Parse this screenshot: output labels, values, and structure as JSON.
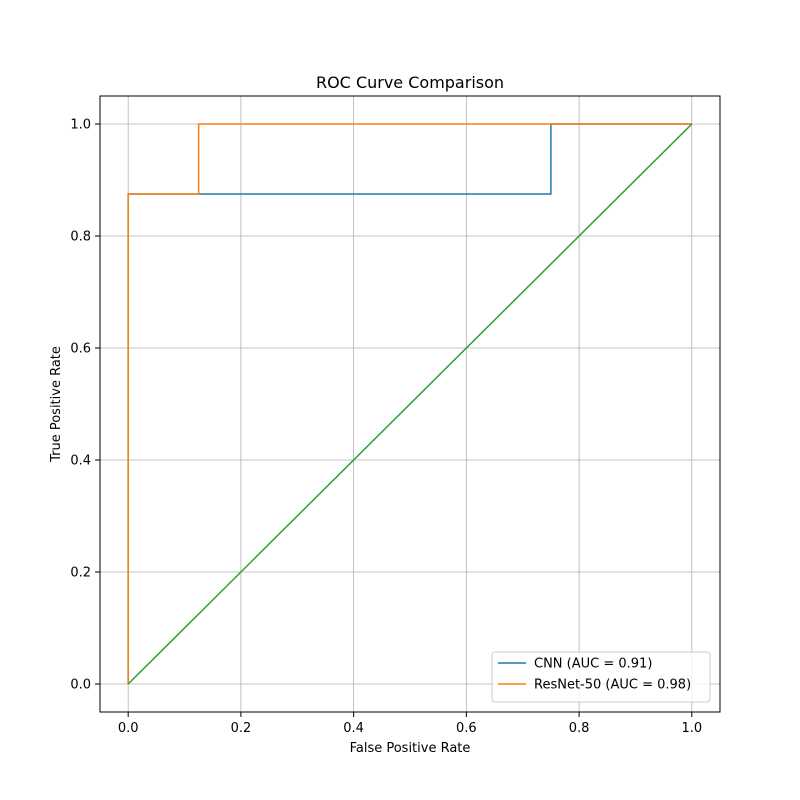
{
  "chart_data": {
    "type": "line",
    "title": "ROC Curve Comparison",
    "xlabel": "False Positive Rate",
    "ylabel": "True Positive Rate",
    "xlim": [
      -0.05,
      1.05
    ],
    "ylim": [
      -0.05,
      1.05
    ],
    "xticks": [
      0.0,
      0.2,
      0.4,
      0.6,
      0.8,
      1.0
    ],
    "yticks": [
      0.0,
      0.2,
      0.4,
      0.6,
      0.8,
      1.0
    ],
    "xtick_labels": [
      "0.0",
      "0.2",
      "0.4",
      "0.6",
      "0.8",
      "1.0"
    ],
    "ytick_labels": [
      "0.0",
      "0.2",
      "0.4",
      "0.6",
      "0.8",
      "1.0"
    ],
    "grid": true,
    "legend_position": "lower-right",
    "series": [
      {
        "name": "CNN (AUC = 0.91)",
        "color": "#1f77b4",
        "x": [
          0.0,
          0.0,
          0.125,
          0.75,
          0.75,
          1.0
        ],
        "y": [
          0.0,
          0.875,
          0.875,
          0.875,
          1.0,
          1.0
        ]
      },
      {
        "name": "ResNet-50 (AUC = 0.98)",
        "color": "#ff7f0e",
        "x": [
          0.0,
          0.0,
          0.125,
          0.125,
          1.0
        ],
        "y": [
          0.0,
          0.875,
          0.875,
          1.0,
          1.0
        ]
      },
      {
        "color": "#2ca02c",
        "x": [
          0.0,
          1.0
        ],
        "y": [
          0.0,
          1.0
        ]
      }
    ]
  }
}
